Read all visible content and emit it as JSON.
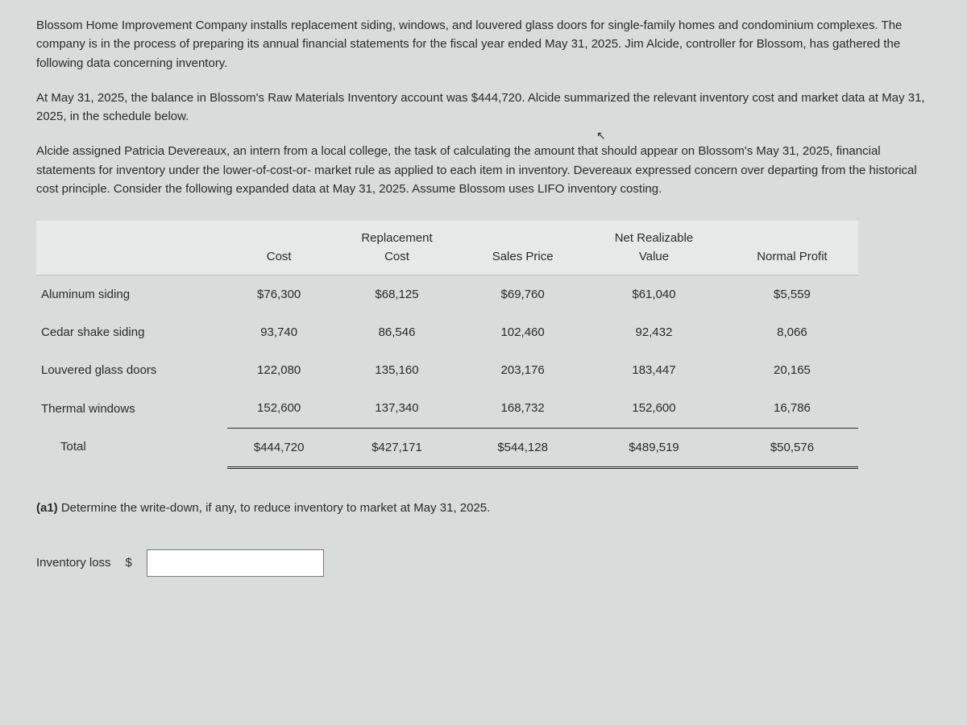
{
  "paragraphs": {
    "p1": "Blossom Home Improvement Company installs replacement siding, windows, and louvered glass doors for single-family homes and condominium complexes. The company is in the process of preparing its annual financial statements for the fiscal year ended May 31, 2025. Jim Alcide, controller for Blossom, has gathered the following data concerning inventory.",
    "p2": "At May 31, 2025, the balance in Blossom's Raw Materials Inventory account was $444,720. Alcide summarized the relevant inventory cost and market data at May 31, 2025, in the schedule below.",
    "p3": "Alcide assigned Patricia Devereaux, an intern from a local college, the task of calculating the amount that should appear on Blossom's May 31, 2025, financial statements for inventory under the lower-of-cost-or- market rule as applied to each item in inventory. Devereaux expressed concern over departing from the historical cost principle. Consider the following expanded data at May 31, 2025. Assume Blossom uses LIFO inventory costing."
  },
  "table": {
    "headers": {
      "col1": "",
      "col2": "Cost",
      "col3_top": "Replacement",
      "col3_bot": "Cost",
      "col4": "Sales Price",
      "col5_top": "Net Realizable",
      "col5_bot": "Value",
      "col6": "Normal Profit"
    },
    "rows": [
      {
        "label": "Aluminum siding",
        "cost": "$76,300",
        "replacement": "$68,125",
        "sales": "$69,760",
        "nrv": "$61,040",
        "profit": "$5,559"
      },
      {
        "label": "Cedar shake siding",
        "cost": "93,740",
        "replacement": "86,546",
        "sales": "102,460",
        "nrv": "92,432",
        "profit": "8,066"
      },
      {
        "label": "Louvered glass doors",
        "cost": "122,080",
        "replacement": "135,160",
        "sales": "203,176",
        "nrv": "183,447",
        "profit": "20,165"
      },
      {
        "label": "Thermal windows",
        "cost": "152,600",
        "replacement": "137,340",
        "sales": "168,732",
        "nrv": "152,600",
        "profit": "16,786"
      }
    ],
    "total": {
      "label": "Total",
      "cost": "$444,720",
      "replacement": "$427,171",
      "sales": "$544,128",
      "nrv": "$489,519",
      "profit": "$50,576"
    },
    "styling": {
      "header_bg": "#e6e9e8",
      "header_border": "#b8bcbb",
      "text_color": "#2a2a2a",
      "body_bg": "#d8dcdb",
      "font_size_pt": 11,
      "col_align": [
        "left",
        "center",
        "center",
        "center",
        "center",
        "center"
      ]
    }
  },
  "question": {
    "prefix": "(a1) ",
    "text": "Determine the write-down, if any, to reduce inventory to market at May 31, 2025."
  },
  "answer": {
    "label": "Inventory loss",
    "currency": "$",
    "value": ""
  }
}
